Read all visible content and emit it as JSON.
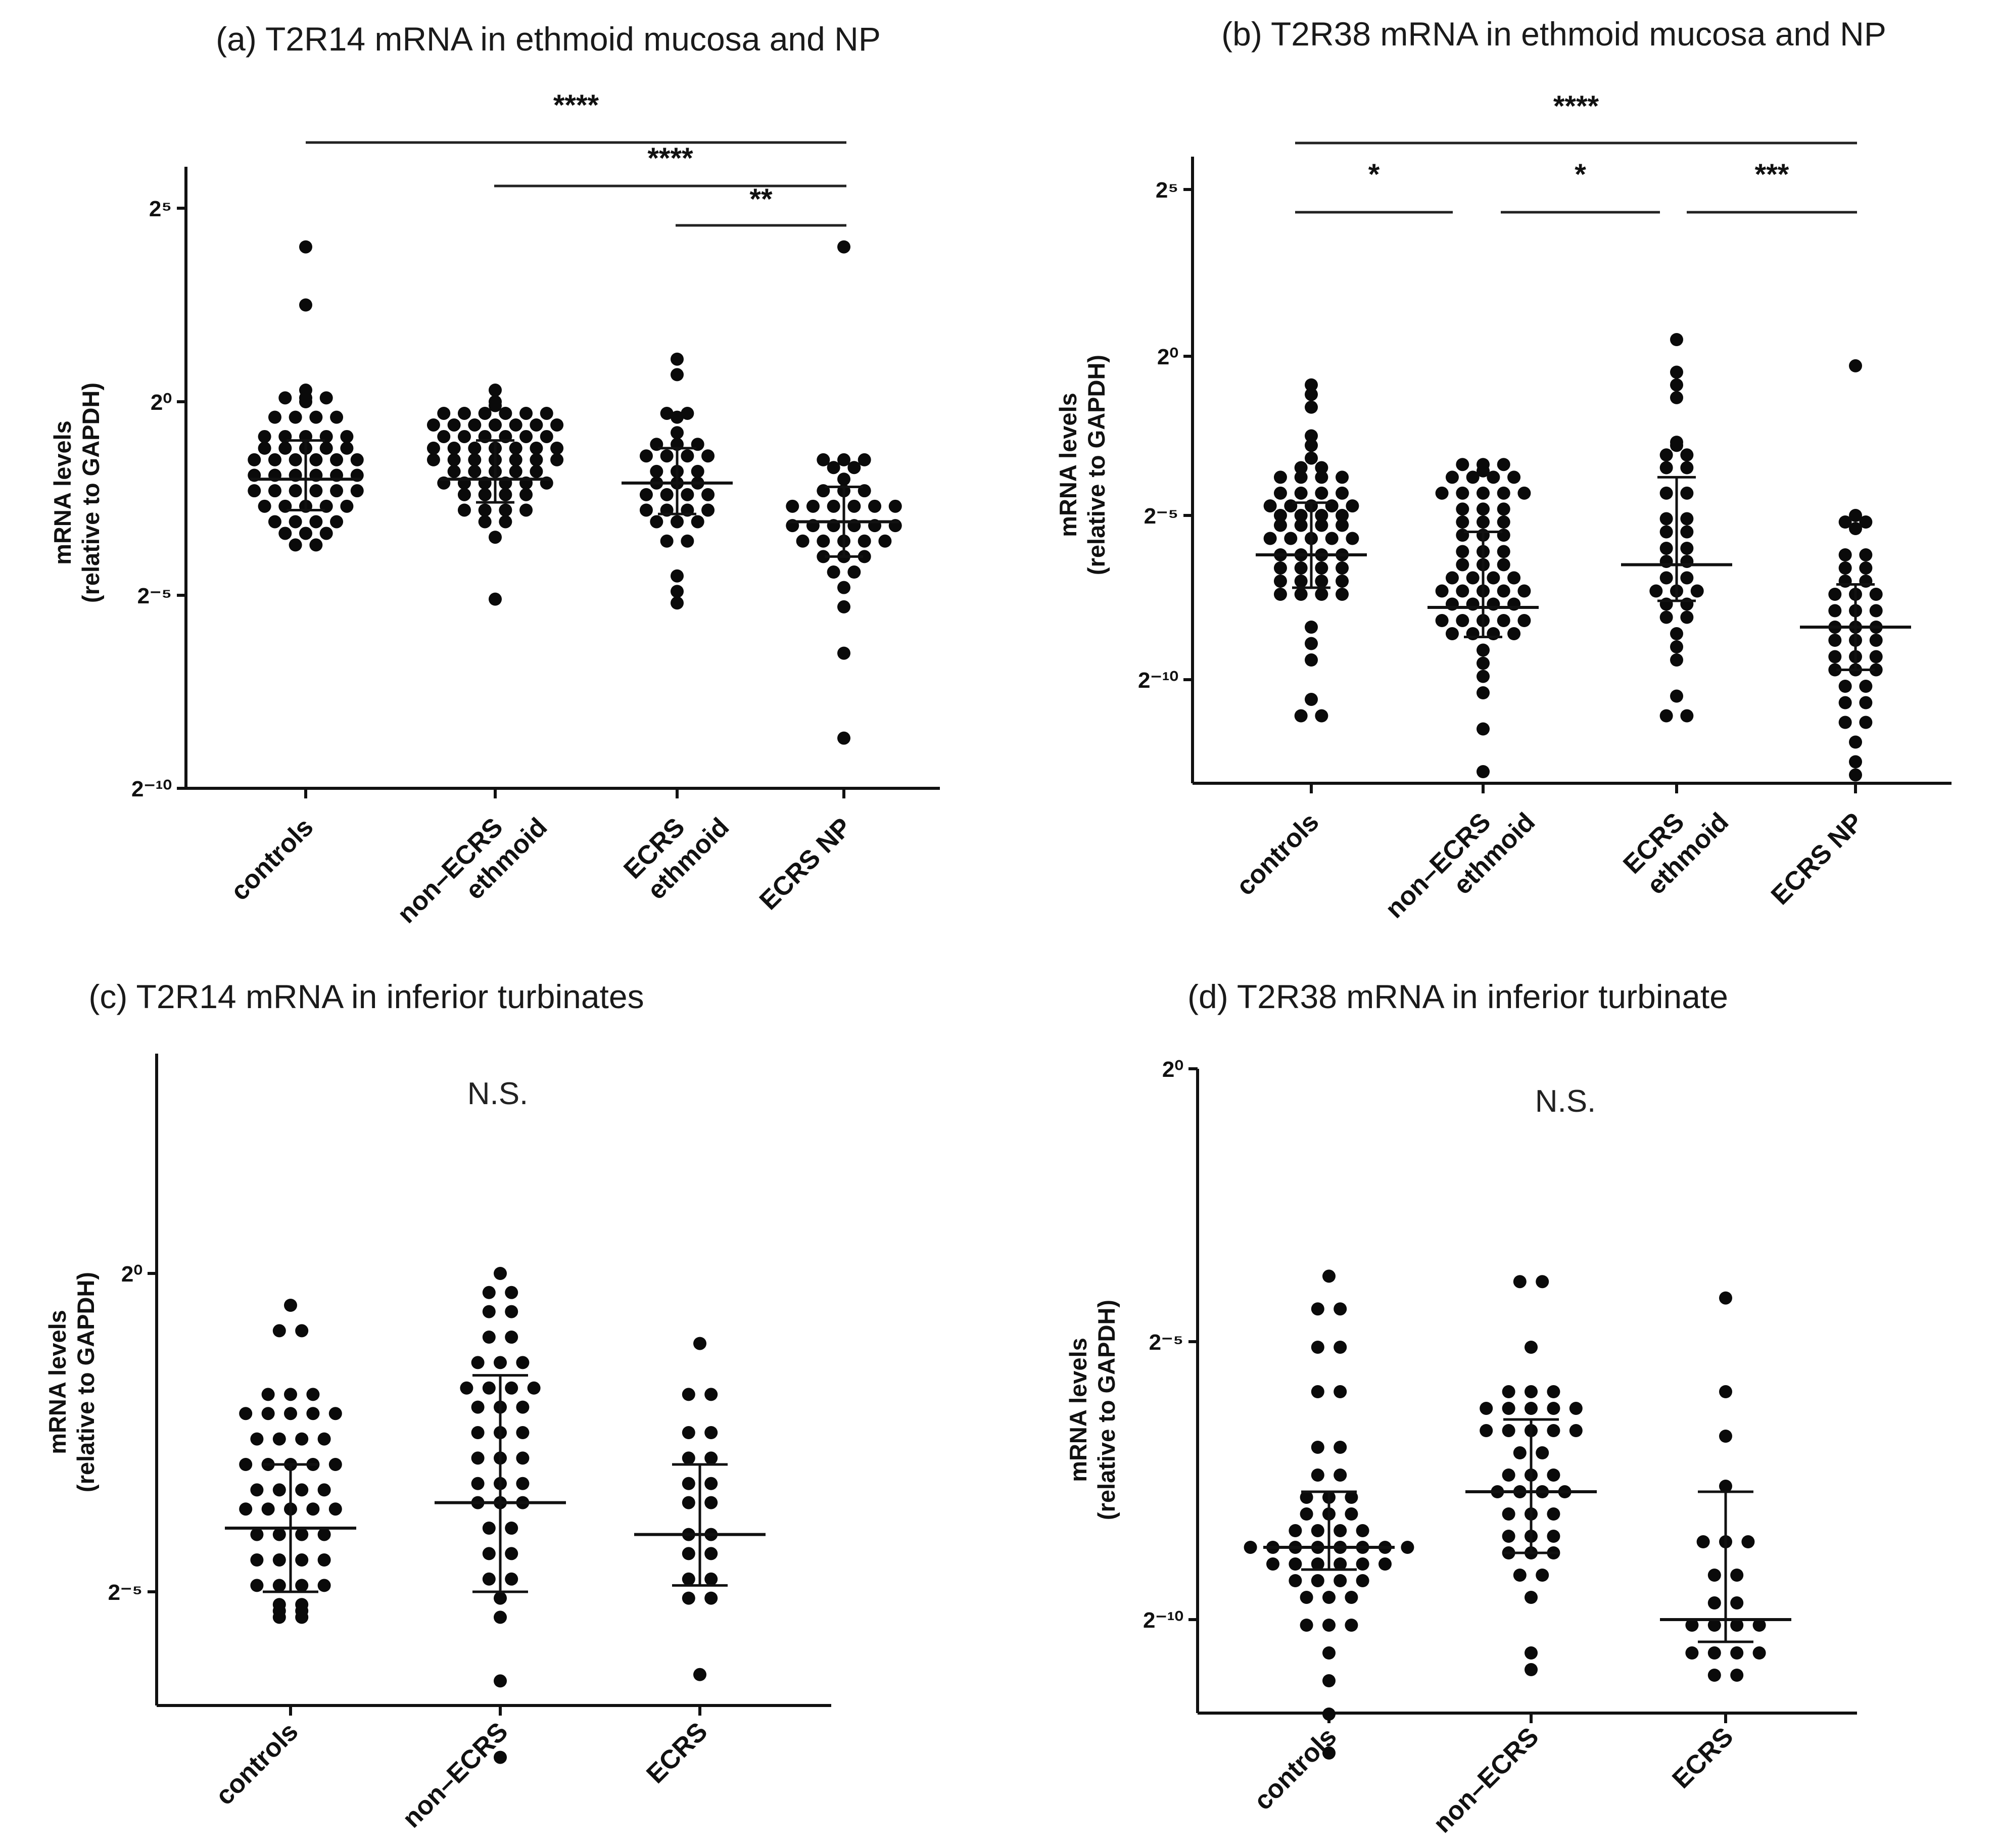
{
  "chart_data": [
    {
      "type": "scatter",
      "title": "(a) T2R14 mRNA in ethmoid mucosa and NP",
      "ylabel": [
        "mRNA levels",
        "(relative to GAPDH)"
      ],
      "y_scale": "log2",
      "ylim": [
        -10,
        6
      ],
      "yticks": [
        {
          "v": 5,
          "label": "2⁵"
        },
        {
          "v": 0,
          "label": "2⁰"
        },
        {
          "v": -5,
          "label": "2⁻⁵"
        },
        {
          "v": -10,
          "label": "2⁻¹⁰"
        }
      ],
      "categories": [
        [
          "controls"
        ],
        [
          "non–ECRS",
          "ethmoid"
        ],
        [
          "ECRS",
          "ethmoid"
        ],
        [
          "ECRS NP"
        ]
      ],
      "series": [
        {
          "values": [
            4.0,
            2.5,
            0.3,
            0.1,
            0.1,
            0.1,
            0.0,
            -0.4,
            -0.4,
            -0.4,
            -0.4,
            -0.9,
            -0.9,
            -0.9,
            -0.9,
            -0.9,
            -1.2,
            -1.2,
            -1.2,
            -1.2,
            -1.2,
            -1.5,
            -1.5,
            -1.5,
            -1.5,
            -1.5,
            -1.5,
            -1.9,
            -1.9,
            -1.9,
            -1.9,
            -1.9,
            -1.9,
            -2.3,
            -2.3,
            -2.3,
            -2.3,
            -2.3,
            -2.3,
            -2.7,
            -2.7,
            -2.7,
            -2.7,
            -2.7,
            -3.1,
            -3.1,
            -3.1,
            -3.1,
            -3.4,
            -3.4,
            -3.4,
            -3.7,
            -3.7
          ],
          "median": -2.0,
          "q1": -2.8,
          "q3": -1.0
        },
        {
          "values": [
            0.3,
            0.0,
            -0.1,
            -0.3,
            -0.3,
            -0.3,
            -0.3,
            -0.3,
            -0.3,
            -0.6,
            -0.6,
            -0.6,
            -0.6,
            -0.6,
            -0.6,
            -0.6,
            -0.9,
            -0.9,
            -0.9,
            -0.9,
            -0.9,
            -0.9,
            -1.2,
            -1.2,
            -1.2,
            -1.2,
            -1.2,
            -1.2,
            -1.2,
            -1.5,
            -1.5,
            -1.5,
            -1.5,
            -1.5,
            -1.5,
            -1.5,
            -1.8,
            -1.8,
            -1.8,
            -1.8,
            -1.8,
            -2.1,
            -2.1,
            -2.1,
            -2.1,
            -2.1,
            -2.1,
            -2.4,
            -2.4,
            -2.4,
            -2.4,
            -2.8,
            -2.8,
            -2.8,
            -2.8,
            -3.1,
            -3.1,
            -3.5,
            -5.1
          ],
          "median": -2.0,
          "q1": -2.6,
          "q3": -1.0
        },
        {
          "values": [
            1.1,
            0.7,
            -0.3,
            -0.3,
            -0.4,
            -0.8,
            -1.1,
            -1.1,
            -1.1,
            -1.4,
            -1.4,
            -1.4,
            -1.4,
            -1.8,
            -1.8,
            -1.8,
            -2.1,
            -2.1,
            -2.1,
            -2.4,
            -2.4,
            -2.4,
            -2.4,
            -2.8,
            -2.8,
            -2.8,
            -2.8,
            -3.1,
            -3.1,
            -3.1,
            -3.6,
            -3.6,
            -4.5,
            -4.9,
            -5.2
          ],
          "median": -2.1,
          "q1": -2.9,
          "q3": -1.2
        },
        {
          "values": [
            4.0,
            -1.5,
            -1.5,
            -1.5,
            -1.7,
            -1.7,
            -2.0,
            -2.3,
            -2.3,
            -2.3,
            -2.7,
            -2.7,
            -2.7,
            -2.7,
            -2.7,
            -2.7,
            -3.2,
            -3.2,
            -3.2,
            -3.2,
            -3.2,
            -3.2,
            -3.6,
            -3.6,
            -3.6,
            -3.6,
            -3.6,
            -4.0,
            -4.0,
            -4.0,
            -4.4,
            -4.4,
            -4.8,
            -5.3,
            -6.5,
            -8.7
          ],
          "median": -3.1,
          "q1": -4.0,
          "q3": -2.2
        }
      ],
      "significance": [
        {
          "from": 0,
          "to": 3,
          "label": "****"
        },
        {
          "from": 1,
          "to": 3,
          "label": "****"
        },
        {
          "from": 2,
          "to": 3,
          "label": "**"
        }
      ]
    },
    {
      "type": "scatter",
      "title": "(b) T2R38 mRNA in ethmoid mucosa and NP",
      "ylabel": [
        "mRNA levels",
        "(relative to GAPDH)"
      ],
      "y_scale": "log2",
      "ylim": [
        -13,
        6
      ],
      "yticks": [
        {
          "v": 5,
          "label": "2⁵"
        },
        {
          "v": 0,
          "label": "2⁰"
        },
        {
          "v": -5,
          "label": "2⁻⁵"
        },
        {
          "v": -10,
          "label": "2⁻¹⁰"
        }
      ],
      "categories": [
        [
          "controls"
        ],
        [
          "non–ECRS",
          "ethmoid"
        ],
        [
          "ECRS",
          "ethmoid"
        ],
        [
          "ECRS NP"
        ]
      ],
      "series": [
        {
          "values": [
            -0.9,
            -1.2,
            -1.6,
            -2.5,
            -2.8,
            -3.2,
            -3.5,
            -3.5,
            -3.8,
            -3.8,
            -3.8,
            -3.8,
            -4.3,
            -4.3,
            -4.3,
            -4.3,
            -4.7,
            -4.7,
            -4.7,
            -4.7,
            -4.7,
            -5.0,
            -5.0,
            -5.0,
            -5.0,
            -5.3,
            -5.3,
            -5.3,
            -5.3,
            -5.7,
            -5.7,
            -5.7,
            -5.7,
            -5.7,
            -6.2,
            -6.2,
            -6.2,
            -6.2,
            -6.6,
            -6.6,
            -6.6,
            -6.6,
            -7.0,
            -7.0,
            -7.0,
            -7.0,
            -7.4,
            -7.4,
            -7.4,
            -7.4,
            -8.4,
            -8.9,
            -9.4,
            -10.6,
            -11.1,
            -11.1
          ],
          "median": -6.2,
          "q1": -7.2,
          "q3": -4.6
        },
        {
          "values": [
            -3.4,
            -3.4,
            -3.4,
            -3.6,
            -3.8,
            -3.8,
            -3.8,
            -3.8,
            -4.3,
            -4.3,
            -4.3,
            -4.3,
            -4.3,
            -4.8,
            -4.8,
            -4.8,
            -5.2,
            -5.2,
            -5.2,
            -5.6,
            -5.6,
            -5.6,
            -6.1,
            -6.1,
            -6.1,
            -6.5,
            -6.5,
            -6.5,
            -6.9,
            -6.9,
            -6.9,
            -6.9,
            -7.3,
            -7.3,
            -7.3,
            -7.3,
            -7.3,
            -7.7,
            -7.7,
            -7.7,
            -7.7,
            -8.2,
            -8.2,
            -8.2,
            -8.2,
            -8.2,
            -8.6,
            -8.6,
            -8.6,
            -8.6,
            -9.1,
            -9.5,
            -9.9,
            -10.4,
            -11.5,
            -12.8
          ],
          "median": -7.8,
          "q1": -8.7,
          "q3": -5.5
        },
        {
          "values": [
            0.5,
            -0.5,
            -0.9,
            -1.3,
            -2.7,
            -2.8,
            -3.1,
            -3.1,
            -3.5,
            -3.5,
            -4.3,
            -4.3,
            -5.1,
            -5.1,
            -5.5,
            -5.5,
            -6.0,
            -6.0,
            -6.4,
            -6.4,
            -6.9,
            -6.9,
            -7.3,
            -7.3,
            -7.3,
            -7.7,
            -7.7,
            -8.1,
            -8.1,
            -8.6,
            -9.0,
            -9.4,
            -10.5,
            -11.1,
            -11.1
          ],
          "median": -6.5,
          "q1": -7.6,
          "q3": -3.8
        },
        {
          "values": [
            -0.3,
            -5.0,
            -5.2,
            -5.2,
            -5.4,
            -6.2,
            -6.2,
            -6.6,
            -6.6,
            -7.0,
            -7.0,
            -7.4,
            -7.4,
            -7.4,
            -7.9,
            -7.9,
            -7.9,
            -8.4,
            -8.4,
            -8.4,
            -8.8,
            -8.8,
            -8.8,
            -9.3,
            -9.3,
            -9.3,
            -9.7,
            -9.7,
            -9.7,
            -10.2,
            -10.2,
            -10.7,
            -10.7,
            -11.3,
            -11.3,
            -11.9,
            -12.5,
            -12.9
          ],
          "median": -8.4,
          "q1": -9.7,
          "q3": -7.1
        }
      ],
      "significance": [
        {
          "from": 0,
          "to": 3,
          "label": "****"
        },
        {
          "from": 0,
          "to": 1,
          "label": "*"
        },
        {
          "from": 1,
          "to": 2,
          "label": "*"
        },
        {
          "from": 2,
          "to": 3,
          "label": "***"
        }
      ]
    },
    {
      "type": "scatter",
      "title": "(c) T2R14 mRNA in inferior turbinates",
      "ylabel": [
        "mRNA levels",
        "(relative to GAPDH)"
      ],
      "y_scale": "log2",
      "ylim": [
        -7.7,
        9.2
      ],
      "yticks": [
        {
          "v": 0,
          "label": "2⁰"
        },
        {
          "v": -5,
          "label": "2⁻⁵"
        }
      ],
      "categories": [
        [
          "controls"
        ],
        [
          "non–ECRS"
        ],
        [
          "ECRS"
        ]
      ],
      "annotation": "N.S.",
      "series": [
        {
          "values": [
            -0.5,
            -0.9,
            -0.9,
            -1.9,
            -1.9,
            -1.9,
            -2.2,
            -2.2,
            -2.2,
            -2.2,
            -2.2,
            -2.6,
            -2.6,
            -2.6,
            -2.6,
            -3.0,
            -3.0,
            -3.0,
            -3.0,
            -3.0,
            -3.4,
            -3.4,
            -3.4,
            -3.4,
            -3.7,
            -3.7,
            -3.7,
            -3.7,
            -3.7,
            -4.1,
            -4.1,
            -4.1,
            -4.1,
            -4.5,
            -4.5,
            -4.5,
            -4.5,
            -4.9,
            -4.9,
            -4.9,
            -4.9,
            -5.2,
            -5.2,
            -5.3,
            -5.3,
            -5.4,
            -5.4
          ],
          "median": -4.0,
          "q1": -5.0,
          "q3": -3.0
        },
        {
          "values": [
            0.0,
            -0.3,
            -0.3,
            -0.6,
            -0.6,
            -1.0,
            -1.0,
            -1.4,
            -1.4,
            -1.4,
            -1.8,
            -1.8,
            -1.8,
            -1.8,
            -2.1,
            -2.1,
            -2.1,
            -2.5,
            -2.5,
            -2.5,
            -2.9,
            -2.9,
            -2.9,
            -3.3,
            -3.3,
            -3.3,
            -3.6,
            -3.6,
            -3.6,
            -4.0,
            -4.0,
            -4.4,
            -4.4,
            -4.8,
            -4.8,
            -5.1,
            -5.4,
            -6.4,
            -7.6
          ],
          "median": -3.6,
          "q1": -5.0,
          "q3": -1.6
        },
        {
          "values": [
            -1.1,
            -1.9,
            -1.9,
            -2.5,
            -2.5,
            -2.9,
            -2.9,
            -3.3,
            -3.3,
            -3.6,
            -3.6,
            -4.1,
            -4.1,
            -4.4,
            -4.4,
            -4.8,
            -4.8,
            -5.1,
            -5.1,
            -6.3
          ],
          "median": -4.1,
          "q1": -4.9,
          "q3": -3.0
        }
      ]
    },
    {
      "type": "scatter",
      "title": "(d) T2R38 mRNA in inferior turbinate",
      "ylabel": [
        "mRNA levels",
        "(relative to GAPDH)"
      ],
      "y_scale": "log2",
      "ylim": [
        -12.5,
        0
      ],
      "yticks": [
        {
          "v": 0,
          "label": "2⁰"
        },
        {
          "v": -5,
          "label": "2⁻⁵"
        },
        {
          "v": -10,
          "label": "2⁻¹⁰"
        }
      ],
      "categories": [
        [
          "controls"
        ],
        [
          "non–ECRS"
        ],
        [
          "ECRS"
        ]
      ],
      "annotation": "N.S.",
      "series": [
        {
          "values": [
            -3.8,
            -4.4,
            -4.4,
            -5.1,
            -5.1,
            -5.9,
            -5.9,
            -6.9,
            -6.9,
            -7.4,
            -7.4,
            -7.8,
            -7.8,
            -7.8,
            -8.1,
            -8.1,
            -8.1,
            -8.4,
            -8.4,
            -8.4,
            -8.4,
            -8.7,
            -8.7,
            -8.7,
            -8.7,
            -8.7,
            -8.7,
            -8.7,
            -8.7,
            -9.0,
            -9.0,
            -9.0,
            -9.0,
            -9.0,
            -9.0,
            -9.3,
            -9.3,
            -9.3,
            -9.3,
            -9.6,
            -9.6,
            -9.6,
            -10.1,
            -10.1,
            -10.1,
            -10.6,
            -11.1,
            -11.7,
            -12.4
          ],
          "median": -8.7,
          "q1": -9.1,
          "q3": -7.7
        },
        {
          "values": [
            -3.9,
            -3.9,
            -5.1,
            -5.9,
            -5.9,
            -5.9,
            -6.2,
            -6.2,
            -6.2,
            -6.2,
            -6.2,
            -6.6,
            -6.6,
            -6.6,
            -6.6,
            -6.6,
            -7.0,
            -7.0,
            -7.4,
            -7.4,
            -7.4,
            -7.7,
            -7.7,
            -7.7,
            -7.7,
            -8.1,
            -8.1,
            -8.1,
            -8.5,
            -8.5,
            -8.5,
            -8.8,
            -8.8,
            -8.8,
            -9.2,
            -9.2,
            -9.6,
            -10.6,
            -10.9
          ],
          "median": -7.7,
          "q1": -8.8,
          "q3": -6.4
        },
        {
          "values": [
            -4.2,
            -5.9,
            -6.7,
            -7.6,
            -8.6,
            -8.6,
            -8.6,
            -9.2,
            -9.2,
            -9.7,
            -9.7,
            -10.1,
            -10.1,
            -10.1,
            -10.1,
            -10.6,
            -10.6,
            -10.6,
            -10.6,
            -11.0,
            -11.0
          ],
          "median": -10.0,
          "q1": -10.4,
          "q3": -7.7
        }
      ]
    }
  ]
}
